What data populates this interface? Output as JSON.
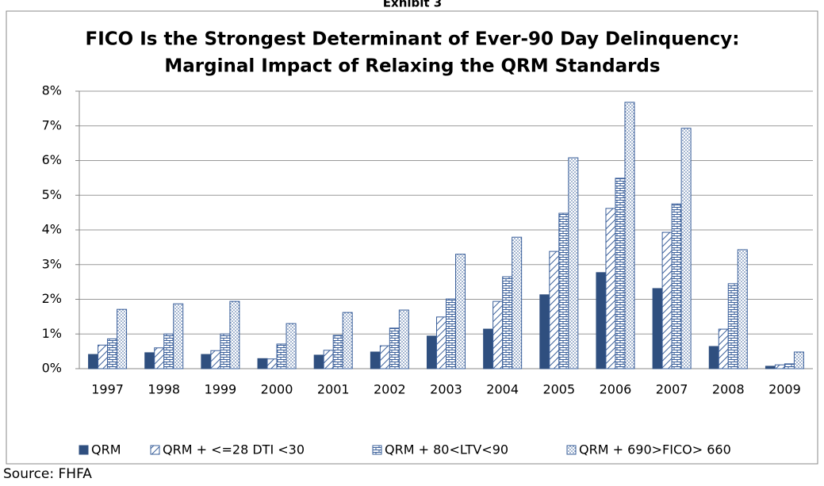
{
  "exhibit": "Exhibit 3",
  "source": "Source: FHFA",
  "chart_data": {
    "type": "bar",
    "title": [
      "FICO Is the Strongest Determinant of Ever-90 Day Delinquency:",
      "Marginal Impact of Relaxing the QRM Standards"
    ],
    "categories": [
      "1997",
      "1998",
      "1999",
      "2000",
      "2001",
      "2002",
      "2003",
      "2004",
      "2005",
      "2006",
      "2007",
      "2008",
      "2009"
    ],
    "series": [
      {
        "name": "QRM",
        "color": "#2f4f7f",
        "pattern": "solid",
        "values": [
          0.41,
          0.46,
          0.41,
          0.29,
          0.39,
          0.48,
          0.94,
          1.14,
          2.13,
          2.77,
          2.31,
          0.64,
          0.07
        ]
      },
      {
        "name": "QRM + <=28 DTI <30",
        "color": "#3a5f9a",
        "pattern": "diagonal",
        "values": [
          0.68,
          0.6,
          0.52,
          0.28,
          0.53,
          0.66,
          1.49,
          1.94,
          3.38,
          4.62,
          3.93,
          1.14,
          0.11
        ]
      },
      {
        "name": "QRM + 80<LTV<90",
        "color": "#3a5f9a",
        "pattern": "brick",
        "values": [
          0.86,
          1.0,
          1.0,
          0.71,
          0.96,
          1.17,
          2.01,
          2.65,
          4.48,
          5.49,
          4.75,
          2.45,
          0.14
        ]
      },
      {
        "name": "QRM + 690>FICO> 660",
        "color": "#3a5f9a",
        "pattern": "dots",
        "values": [
          1.71,
          1.87,
          1.94,
          1.3,
          1.62,
          1.69,
          3.3,
          3.79,
          6.08,
          7.68,
          6.93,
          3.43,
          0.48
        ]
      }
    ],
    "ylim": [
      0,
      8
    ],
    "yticks": [
      {
        "value": 0,
        "label": "0%"
      },
      {
        "value": 1,
        "label": "1%"
      },
      {
        "value": 2,
        "label": "2%"
      },
      {
        "value": 3,
        "label": "3%"
      },
      {
        "value": 4,
        "label": "4%"
      },
      {
        "value": 5,
        "label": "5%"
      },
      {
        "value": 6,
        "label": "6%"
      },
      {
        "value": 7,
        "label": "7%"
      },
      {
        "value": 8,
        "label": "8%"
      }
    ],
    "grid": true,
    "legend": "bottom"
  }
}
